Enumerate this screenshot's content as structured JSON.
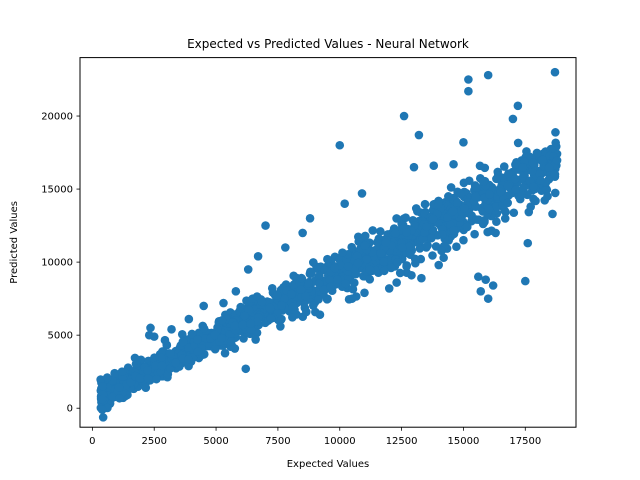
{
  "chart_data": {
    "type": "scatter",
    "title": "Expected vs Predicted Values - Neural Network",
    "xlabel": "Expected Values",
    "ylabel": "Predicted Values",
    "xlim": [
      -500,
      19550
    ],
    "ylim": [
      -1300,
      24000
    ],
    "xticks": [
      0,
      2500,
      5000,
      7500,
      10000,
      12500,
      15000,
      17500
    ],
    "yticks": [
      0,
      5000,
      10000,
      15000,
      20000
    ],
    "grid": false,
    "legend": "none",
    "series": [
      {
        "color": "#1f77b4",
        "trend": {
          "x_range": [
            330,
            18800
          ],
          "slope": 0.87,
          "intercept": 500,
          "noise": 700,
          "count": 1400
        },
        "points": [
          [
            400,
            -100
          ],
          [
            420,
            1500
          ],
          [
            600,
            2100
          ],
          [
            900,
            2400
          ],
          [
            1200,
            2500
          ],
          [
            1800,
            3300
          ],
          [
            2300,
            5000
          ],
          [
            2350,
            5500
          ],
          [
            2500,
            4900
          ],
          [
            3200,
            5400
          ],
          [
            3900,
            6100
          ],
          [
            4500,
            7000
          ],
          [
            5300,
            7200
          ],
          [
            5800,
            8000
          ],
          [
            6200,
            2700
          ],
          [
            6300,
            9500
          ],
          [
            6600,
            4700
          ],
          [
            6700,
            10400
          ],
          [
            7000,
            12500
          ],
          [
            7600,
            5600
          ],
          [
            7800,
            11000
          ],
          [
            8500,
            12000
          ],
          [
            8800,
            13000
          ],
          [
            9200,
            6400
          ],
          [
            9500,
            10200
          ],
          [
            9800,
            9600
          ],
          [
            9900,
            8800
          ],
          [
            10000,
            18000
          ],
          [
            10200,
            14000
          ],
          [
            10500,
            7500
          ],
          [
            10900,
            14700
          ],
          [
            11000,
            7900
          ],
          [
            11800,
            9400
          ],
          [
            12000,
            8200
          ],
          [
            12300,
            8600
          ],
          [
            12600,
            20000
          ],
          [
            12700,
            9700
          ],
          [
            12900,
            9100
          ],
          [
            13000,
            16500
          ],
          [
            13200,
            18700
          ],
          [
            13300,
            8900
          ],
          [
            13800,
            16600
          ],
          [
            14000,
            9800
          ],
          [
            14200,
            10300
          ],
          [
            14600,
            16700
          ],
          [
            15000,
            18200
          ],
          [
            15000,
            11500
          ],
          [
            15200,
            22500
          ],
          [
            15200,
            21700
          ],
          [
            15600,
            9000
          ],
          [
            15700,
            8000
          ],
          [
            15800,
            15500
          ],
          [
            15900,
            8800
          ],
          [
            16000,
            22800
          ],
          [
            16000,
            7500
          ],
          [
            16200,
            8400
          ],
          [
            16300,
            12000
          ],
          [
            16500,
            14800
          ],
          [
            16800,
            15200
          ],
          [
            17000,
            19800
          ],
          [
            17200,
            20700
          ],
          [
            17400,
            16500
          ],
          [
            17500,
            8700
          ],
          [
            17600,
            11300
          ],
          [
            17800,
            16800
          ],
          [
            18200,
            17000
          ],
          [
            18400,
            14500
          ],
          [
            18600,
            13300
          ],
          [
            18700,
            23000
          ],
          [
            18700,
            16000
          ]
        ]
      }
    ]
  }
}
